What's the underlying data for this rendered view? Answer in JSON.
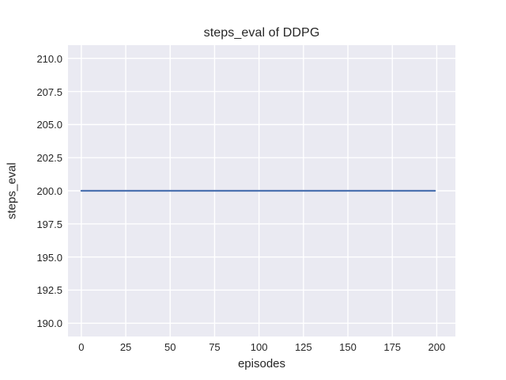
{
  "chart_data": {
    "type": "line",
    "title": "steps_eval of DDPG",
    "xlabel": "episodes",
    "ylabel": "steps_eval",
    "xlim": [
      -7.5,
      210.5
    ],
    "ylim": [
      189,
      211
    ],
    "x_ticks": [
      0,
      25,
      50,
      75,
      100,
      125,
      150,
      175,
      200
    ],
    "x_tick_labels": [
      "0",
      "25",
      "50",
      "75",
      "100",
      "125",
      "150",
      "175",
      "200"
    ],
    "y_ticks": [
      190.0,
      192.5,
      195.0,
      197.5,
      200.0,
      202.5,
      205.0,
      207.5,
      210.0
    ],
    "y_tick_labels": [
      "190.0",
      "192.5",
      "195.0",
      "197.5",
      "200.0",
      "202.5",
      "205.0",
      "207.5",
      "210.0"
    ],
    "grid": true,
    "legend_position": "none",
    "series": [
      {
        "name": "DDPG",
        "color": "#4c72b0",
        "x": [
          0,
          199
        ],
        "y": [
          200,
          200
        ]
      }
    ],
    "colors": {
      "figure_background": "#ffffff",
      "axes_background": "#eaeaf2",
      "grid": "#ffffff",
      "text": "#262626"
    }
  }
}
